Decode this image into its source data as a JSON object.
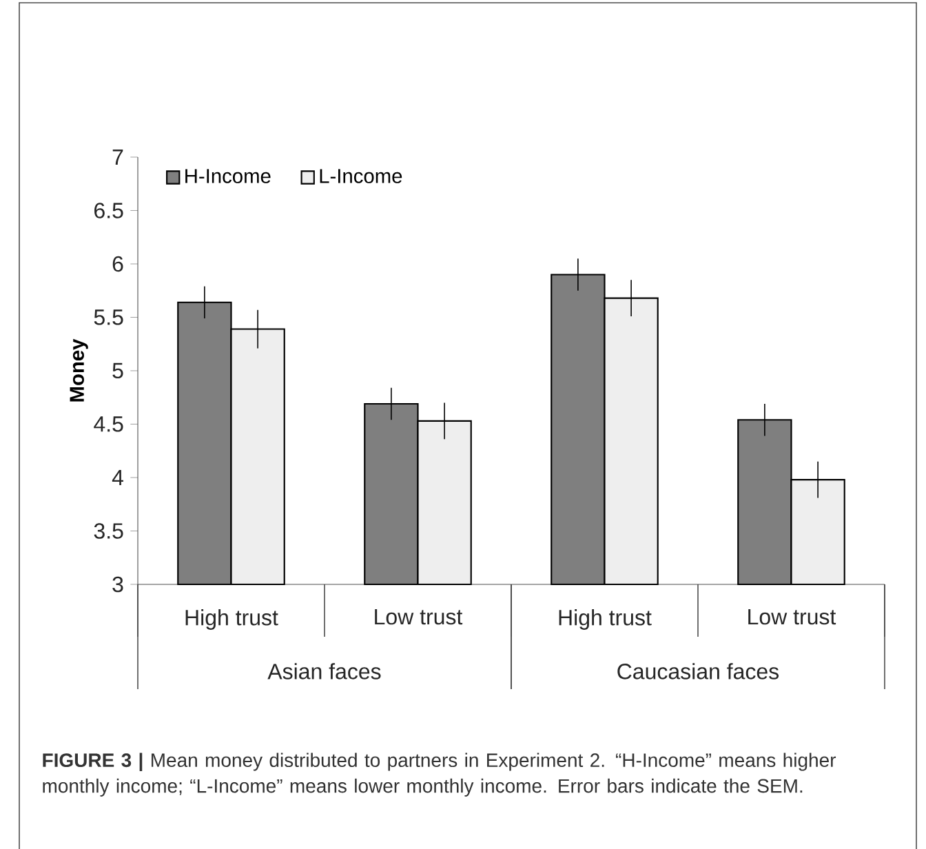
{
  "chart_data": {
    "type": "bar",
    "ylabel": "Money",
    "categories": [
      "High trust",
      "Low trust",
      "High trust",
      "Low trust"
    ],
    "series": [
      {
        "name": "H-Income",
        "color": "#7f7f7f",
        "values": [
          5.64,
          4.69,
          5.9,
          4.54
        ],
        "errors": [
          0.15,
          0.15,
          0.15,
          0.15
        ]
      },
      {
        "name": "L-Income",
        "color": "#eeeeee",
        "values": [
          5.39,
          4.53,
          5.68,
          3.98
        ],
        "errors": [
          0.18,
          0.17,
          0.17,
          0.17
        ]
      }
    ],
    "ylim": [
      3,
      7
    ],
    "yticks": [
      3,
      3.5,
      4,
      4.5,
      5,
      5.5,
      6,
      6.5,
      7
    ],
    "legend": "top left",
    "annotations": [
      "Asian faces",
      "Caucasian faces",
      "**FIGURE 3 |** Mean money distributed to partners in Experiment 2. “H-Income” means higher monthly income; “L-Income” means lower monthly income. Error bars indicate the SEM."
    ]
  }
}
